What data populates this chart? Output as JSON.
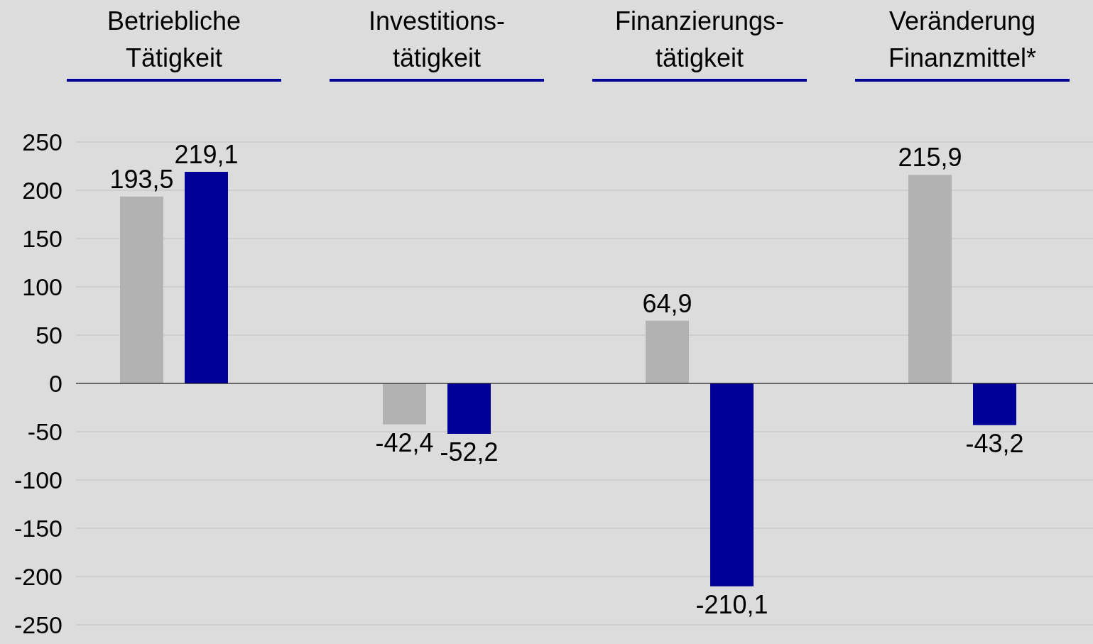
{
  "chart_data": {
    "type": "bar",
    "categories": [
      "Betriebliche\nTätigkeit",
      "Investitions-\ntätigkeit",
      "Finanzierungs-\ntätigkeit",
      "Veränderung\nFinanzmittel*"
    ],
    "series": [
      {
        "color": "#b2b2b2",
        "values": [
          193.5,
          -42.4,
          64.9,
          215.9
        ],
        "value_labels": [
          "193,5",
          "-42,4",
          "64,9",
          "215,9"
        ]
      },
      {
        "color": "#000099",
        "values": [
          219.1,
          -52.2,
          -210.1,
          -43.2
        ],
        "value_labels": [
          "219,1",
          "-52,2",
          "-210,1",
          "-43,2"
        ]
      }
    ],
    "ylim": [
      -250,
      250
    ],
    "yticks": [
      -250,
      -200,
      -150,
      -100,
      -50,
      0,
      50,
      100,
      150,
      200,
      250
    ],
    "grid": "y"
  }
}
